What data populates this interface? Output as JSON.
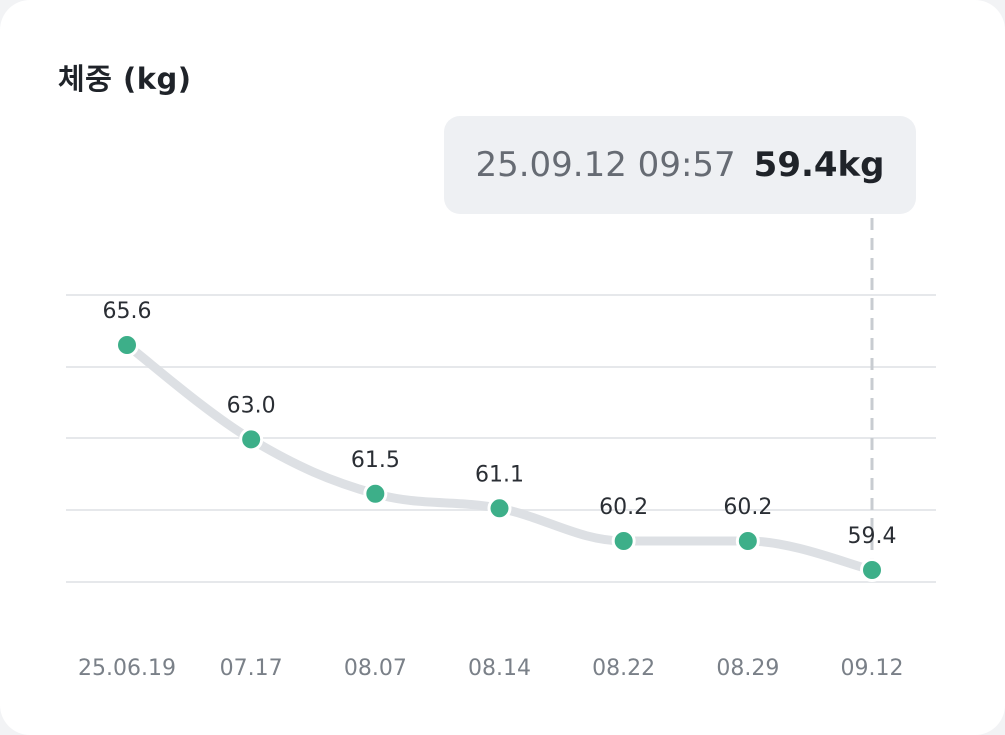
{
  "card": {
    "title": "체중 (kg)"
  },
  "tooltip": {
    "timestamp": "25.09.12 09:57",
    "value": "59.4kg"
  },
  "colors": {
    "point": "#3daf89",
    "line": "#dde0e4",
    "grid": "#e6e8eb",
    "guide": "#c8ccd1"
  },
  "chart_data": {
    "type": "line",
    "title": "체중 (kg)",
    "xlabel": "",
    "ylabel": "",
    "grid": true,
    "categories": [
      "25.06.19",
      "07.17",
      "08.07",
      "08.14",
      "08.22",
      "08.29",
      "09.12"
    ],
    "series": [
      {
        "values": [
          65.6,
          63.0,
          61.5,
          61.1,
          60.2,
          60.2,
          59.4
        ],
        "labels": [
          "65.6",
          "63.0",
          "61.5",
          "61.1",
          "60.2",
          "60.2",
          "59.4"
        ]
      }
    ],
    "highlighted_index": 6
  }
}
